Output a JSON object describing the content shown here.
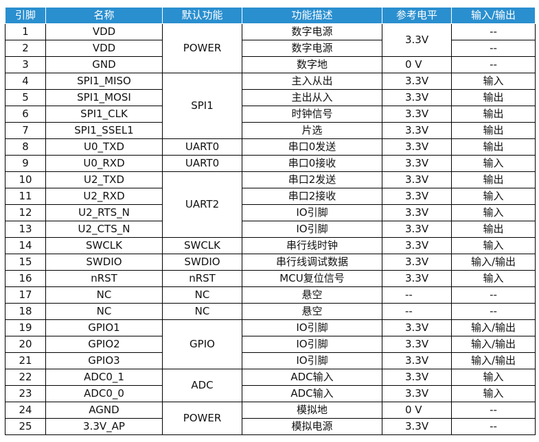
{
  "table": {
    "header": [
      "引脚",
      "名称",
      "默认功能",
      "功能描述",
      "参考电平",
      "输入/输出"
    ],
    "rows": [
      {
        "pin": "1",
        "name": "VDD",
        "function": "POWER",
        "description": "数字电源",
        "level": "3.3V",
        "io": "--"
      },
      {
        "pin": "2",
        "name": "VDD",
        "description": "数字电源",
        "io": "--"
      },
      {
        "pin": "3",
        "name": "GND",
        "description": "数字地",
        "level": "0 V",
        "io": "--"
      },
      {
        "pin": "4",
        "name": "SPI1_MISO",
        "function": "SPI1",
        "description": "主入从出",
        "level": "3.3V",
        "io": "输入"
      },
      {
        "pin": "5",
        "name": "SPI1_MOSI",
        "description": "主出从入",
        "level": "3.3V",
        "io": "输出"
      },
      {
        "pin": "6",
        "name": "SPI1_CLK",
        "description": "时钟信号",
        "level": "3.3V",
        "io": "输出"
      },
      {
        "pin": "7",
        "name": "SPI1_SSEL1",
        "description": "片选",
        "level": "3.3V",
        "io": "输出"
      },
      {
        "pin": "8",
        "name": "U0_TXD",
        "function": "UART0",
        "description": "串口0发送",
        "level": "3.3V",
        "io": "输出"
      },
      {
        "pin": "9",
        "name": "U0_RXD",
        "function": "UART0",
        "description": "串口0接收",
        "level": "3.3V",
        "io": "输入"
      },
      {
        "pin": "10",
        "name": "U2_TXD",
        "function": "UART2",
        "description": "串口2发送",
        "level": "3.3V",
        "io": "输出"
      },
      {
        "pin": "11",
        "name": "U2_RXD",
        "description": "串口2接收",
        "level": "3.3V",
        "io": "输入"
      },
      {
        "pin": "12",
        "name": "U2_RTS_N",
        "description": "IO引脚",
        "level": "3.3V",
        "io": "输入"
      },
      {
        "pin": "13",
        "name": "U2_CTS_N",
        "description": "IO引脚",
        "level": "3.3V",
        "io": "输出"
      },
      {
        "pin": "14",
        "name": "SWCLK",
        "function": "SWCLK",
        "description": "串行线时钟",
        "level": "3.3V",
        "io": "输入"
      },
      {
        "pin": "15",
        "name": "SWDIO",
        "function": "SWDIO",
        "description": "串行线调试数据",
        "level": "3.3V",
        "io": "输入/输出"
      },
      {
        "pin": "16",
        "name": "nRST",
        "function": "nRST",
        "description": "MCU复位信号",
        "level": "3.3V",
        "io": "输入"
      },
      {
        "pin": "17",
        "name": "NC",
        "function": "NC",
        "description": "悬空",
        "level": "--",
        "io": "--"
      },
      {
        "pin": "18",
        "name": "NC",
        "function": "NC",
        "description": "悬空",
        "level": "--",
        "io": "--"
      },
      {
        "pin": "19",
        "name": "GPIO1",
        "function": "GPIO",
        "description": "IO引脚",
        "level": "3.3V",
        "io": "输入/输出"
      },
      {
        "pin": "20",
        "name": "GPIO2",
        "description": "IO引脚",
        "level": "3.3V",
        "io": "输入/输出"
      },
      {
        "pin": "21",
        "name": "GPIO3",
        "description": "IO引脚",
        "level": "3.3V",
        "io": "输入/输出"
      },
      {
        "pin": "22",
        "name": "ADC0_1",
        "function": "ADC",
        "description": "ADC输入",
        "level": "3.3V",
        "io": "输入"
      },
      {
        "pin": "23",
        "name": "ADC0_0",
        "description": "ADC输入",
        "level": "3.3V",
        "io": "输入"
      },
      {
        "pin": "24",
        "name": "AGND",
        "function": "POWER",
        "description": "模拟地",
        "level": "0 V",
        "io": "--"
      },
      {
        "pin": "25",
        "name": "3.3V_AP",
        "description": "模拟电源",
        "level": "3.3V",
        "io": "--"
      }
    ]
  }
}
